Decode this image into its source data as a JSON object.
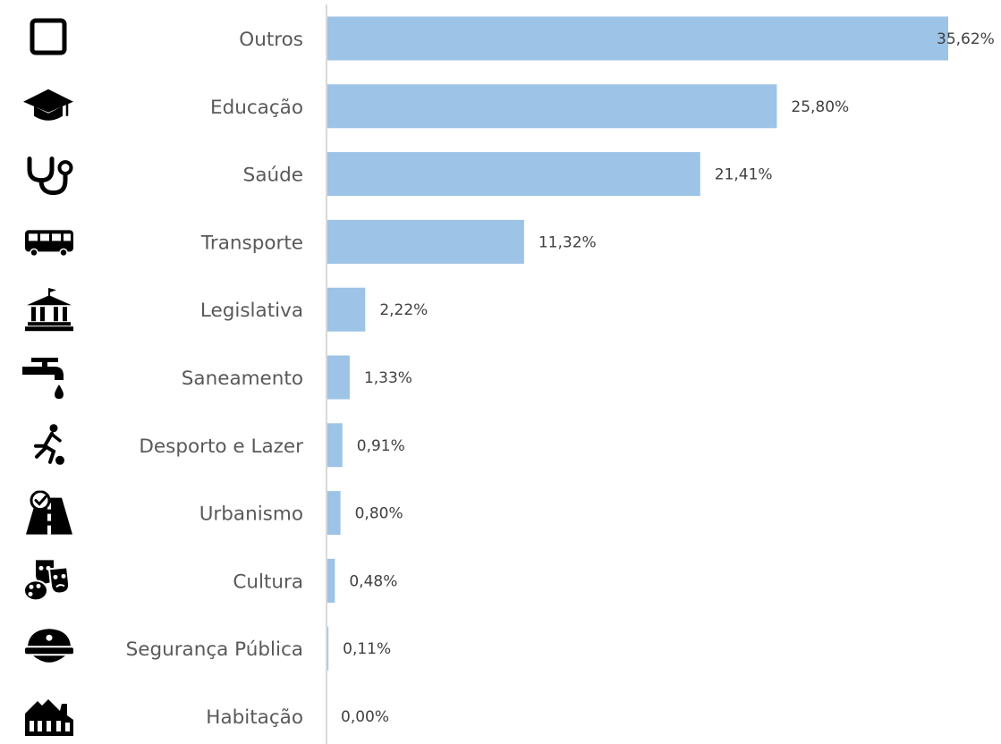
{
  "chart_data": {
    "type": "bar",
    "orientation": "horizontal",
    "title": "",
    "xlabel": "",
    "ylabel": "",
    "categories": [
      "Outros",
      "Educação",
      "Saúde",
      "Transporte",
      "Legislativa",
      "Saneamento",
      "Desporto e Lazer",
      "Urbanismo",
      "Cultura",
      "Segurança Pública",
      "Habitação"
    ],
    "values": [
      35.62,
      25.8,
      21.41,
      11.32,
      2.22,
      1.33,
      0.91,
      0.8,
      0.48,
      0.11,
      0.0
    ],
    "value_labels": [
      "35,62%",
      "25,80%",
      "21,41%",
      "11,32%",
      "2,22%",
      "1,33%",
      "0,91%",
      "0,80%",
      "0,48%",
      "0,11%",
      "0,00%"
    ],
    "icons": [
      "square-outline-icon",
      "graduation-cap-icon",
      "stethoscope-icon",
      "bus-icon",
      "government-building-icon",
      "water-tap-icon",
      "football-player-icon",
      "road-icon",
      "theater-masks-icon",
      "police-cap-icon",
      "houses-icon"
    ],
    "xlim": [
      0,
      35.62
    ],
    "grid": false,
    "legend": "none",
    "bar_color": "#9DC3E6",
    "axis_color": "#D9D9D9"
  }
}
